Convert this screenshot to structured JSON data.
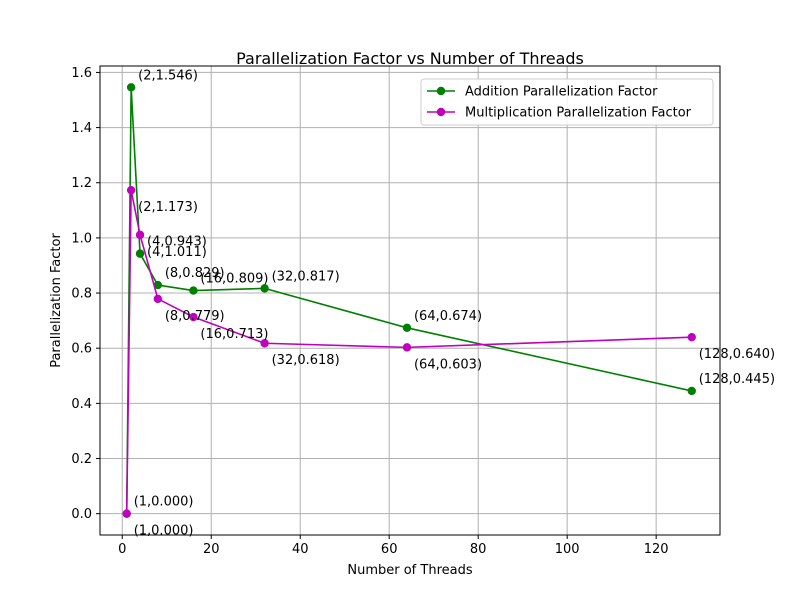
{
  "chart_data": {
    "type": "line",
    "title": "Parallelization Factor vs Number of Threads",
    "xlabel": "Number of Threads",
    "ylabel": "Parallelization Factor",
    "xlim": [
      -5,
      134.35
    ],
    "ylim": [
      -0.0773,
      1.6233
    ],
    "xticks": [
      0,
      20,
      40,
      60,
      80,
      100,
      120
    ],
    "yticks": [
      0.0,
      0.2,
      0.4,
      0.6,
      0.8,
      1.0,
      1.2,
      1.4,
      1.6
    ],
    "xtick_labels": [
      "0",
      "20",
      "40",
      "60",
      "80",
      "100",
      "120"
    ],
    "ytick_labels": [
      "0.0",
      "0.2",
      "0.4",
      "0.6",
      "0.8",
      "1.0",
      "1.2",
      "1.4",
      "1.6"
    ],
    "grid": true,
    "legend_position": "upper right",
    "x": [
      1,
      2,
      4,
      8,
      16,
      32,
      64,
      128
    ],
    "series": [
      {
        "name": "Addition Parallelization Factor",
        "color": "#008000",
        "values": [
          0.0,
          1.546,
          0.943,
          0.829,
          0.809,
          0.817,
          0.674,
          0.445
        ],
        "labels": [
          "(1,0.000)",
          "(2,1.546)",
          "(4,0.943)",
          "(8,0.829)",
          "(16,0.809)",
          "(32,0.817)",
          "(64,0.674)",
          "(128,0.445)"
        ]
      },
      {
        "name": "Multiplication Parallelization Factor",
        "color": "#bf00bf",
        "values": [
          0.0,
          1.173,
          1.011,
          0.779,
          0.713,
          0.618,
          0.603,
          0.64
        ],
        "labels": [
          "(1,0.000)",
          "(2,1.173)",
          "(4,1.011)",
          "(8,0.779)",
          "(16,0.713)",
          "(32,0.618)",
          "(64,0.603)",
          "(128,0.640)"
        ]
      }
    ]
  }
}
